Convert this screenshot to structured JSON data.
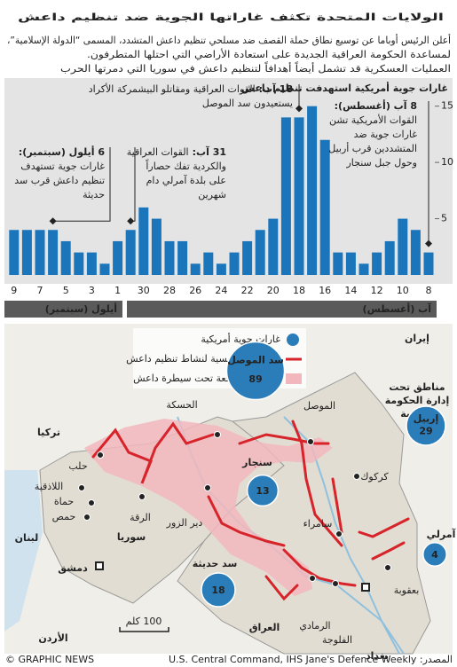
{
  "header": {
    "title": "الولايات المتحدة تكثف غاراتها الجوية ضد تنظيم داعش",
    "intro": [
      "أعلن الرئيس أوباما عن توسيع نطاق حملة القصف ضد مسلحي تنظيم داعش المتشدد، المسمى “الدولة الإسلامية”،",
      "لمساعدة الحكومة العراقية الجديدة على استعادة الأراضي التي احتلها المتطرفون.",
      "العمليات العسكرية قد تشمل أيضاً أهدافاً لتنظيم داعش في سوريا التي دمرتها الحرب"
    ]
  },
  "chart_data": {
    "type": "bar",
    "title": "غارات جوية أمريكية استهدفت تنظيم داعش",
    "x_direction": "right-to-left",
    "categories": [
      "8",
      null,
      "10",
      null,
      "12",
      null,
      "14",
      null,
      "16",
      null,
      "18",
      null,
      "20",
      null,
      "22",
      null,
      "24",
      null,
      "26",
      null,
      "28",
      null,
      "30",
      null,
      "1",
      null,
      "3",
      null,
      "5",
      null,
      "7",
      null,
      "9"
    ],
    "values": [
      2,
      4,
      5,
      3,
      2,
      1,
      2,
      2,
      12,
      15,
      14,
      14,
      5,
      4,
      3,
      2,
      1,
      2,
      1,
      3,
      3,
      5,
      6,
      4,
      3,
      1,
      2,
      2,
      3,
      4,
      4,
      4,
      4
    ],
    "color": "#1b75bb",
    "ylim": [
      0,
      16
    ],
    "yticks": [
      5,
      10,
      15
    ],
    "months": [
      "آب (أغسطس)",
      "أيلول (سبتمبر)"
    ],
    "annotations": [
      {
        "date": "8 آب (أغسطس):",
        "lines": [
          "القوات الأمريكية تشن",
          "غارات جوية ضد",
          "المتشددين قرب أربيل",
          "وحول جبل سنجار"
        ]
      },
      {
        "date": "18 آب:",
        "lines": [
          "القوات العراقية ومقاتلو البيشمركة الأكراد",
          "يستعيدون سد الموصل"
        ]
      },
      {
        "date": "31 آب:",
        "lines": [
          "القوات العراقية",
          "والكردية تفك حصاراً",
          "على بلدة آمرلي دام",
          "شهرين"
        ]
      },
      {
        "date": "6 أيلول (سبتمبر):",
        "lines": [
          "غارات جوية تستهدف",
          "تنظيم داعش قرب سد",
          "حديثة"
        ]
      }
    ]
  },
  "map": {
    "legend": [
      "غارات جوية أمريكية",
      "المناطق الرئيسية لنشاط تنظيم داعش",
      "المناطق الواقعة تحت سيطرة داعش"
    ],
    "countries": [
      "تركيا",
      "إيران",
      "سوريا",
      "العراق",
      "لبنان",
      "الأردن"
    ],
    "cities": [
      "الحسكة",
      "حلب",
      "اللاذقية",
      "حماة",
      "حمص",
      "دمشق",
      "الرقة",
      "دير الزور",
      "الموصل",
      "كركوك",
      "سامراء",
      "الرمادي",
      "الفلوجة",
      "بغداد",
      "بعقوبة"
    ],
    "region_label": [
      "مناطق تحت",
      "إدارة الحكومة",
      "الكردية"
    ],
    "bubbles": [
      {
        "name": "سد الموصل",
        "value": 89
      },
      {
        "name": "إربيل",
        "value": 29
      },
      {
        "name": "سنجار",
        "value": 13
      },
      {
        "name": "سد حديثة",
        "value": 18
      },
      {
        "name": "آمرلي",
        "value": 4
      }
    ],
    "scale": "100 كلم"
  },
  "footer": {
    "credit": "© GRAPHIC NEWS",
    "source": "المصدر: U.S. Central Command, IHS Jane's Defence Weekly"
  }
}
